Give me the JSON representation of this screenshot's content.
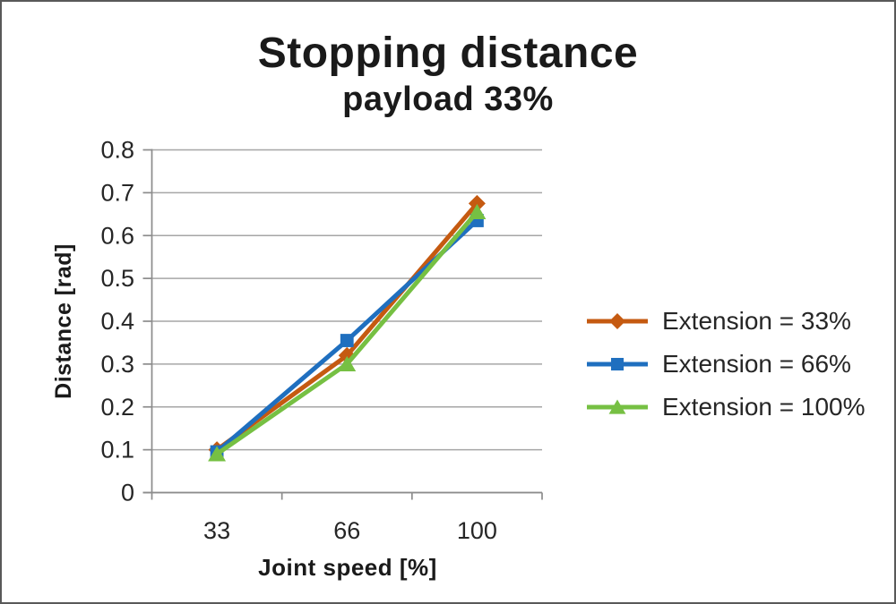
{
  "page": {
    "background": "#FFFFFF",
    "border_color": "#595959"
  },
  "chart_data": {
    "type": "line",
    "title": "Stopping distance",
    "subtitle": "payload 33%",
    "xlabel": "Joint speed [%]",
    "ylabel": "Distance [rad]",
    "categories": [
      "33",
      "66",
      "100"
    ],
    "ylim": [
      0,
      0.8
    ],
    "yticks": [
      0,
      0.1,
      0.2,
      0.3,
      0.4,
      0.5,
      0.6,
      0.7,
      0.8
    ],
    "ytick_labels": [
      "0",
      "0.1",
      "0.2",
      "0.3",
      "0.4",
      "0.5",
      "0.6",
      "0.7",
      "0.8"
    ],
    "grid": true,
    "legend_position": "right",
    "series": [
      {
        "name": "Extension = 33%",
        "marker": "diamond",
        "color": "#C55A11",
        "values": [
          0.1,
          0.32,
          0.675
        ]
      },
      {
        "name": "Extension = 66%",
        "marker": "square",
        "color": "#1F6FBF",
        "values": [
          0.095,
          0.355,
          0.635
        ]
      },
      {
        "name": "Extension = 100%",
        "marker": "triangle",
        "color": "#76C043",
        "values": [
          0.09,
          0.3,
          0.655
        ]
      }
    ],
    "style": {
      "grid_color": "#A6A6A6",
      "axis_color": "#8C8C8C",
      "text_color": "#262626",
      "title_color": "#1A1A1A"
    }
  }
}
